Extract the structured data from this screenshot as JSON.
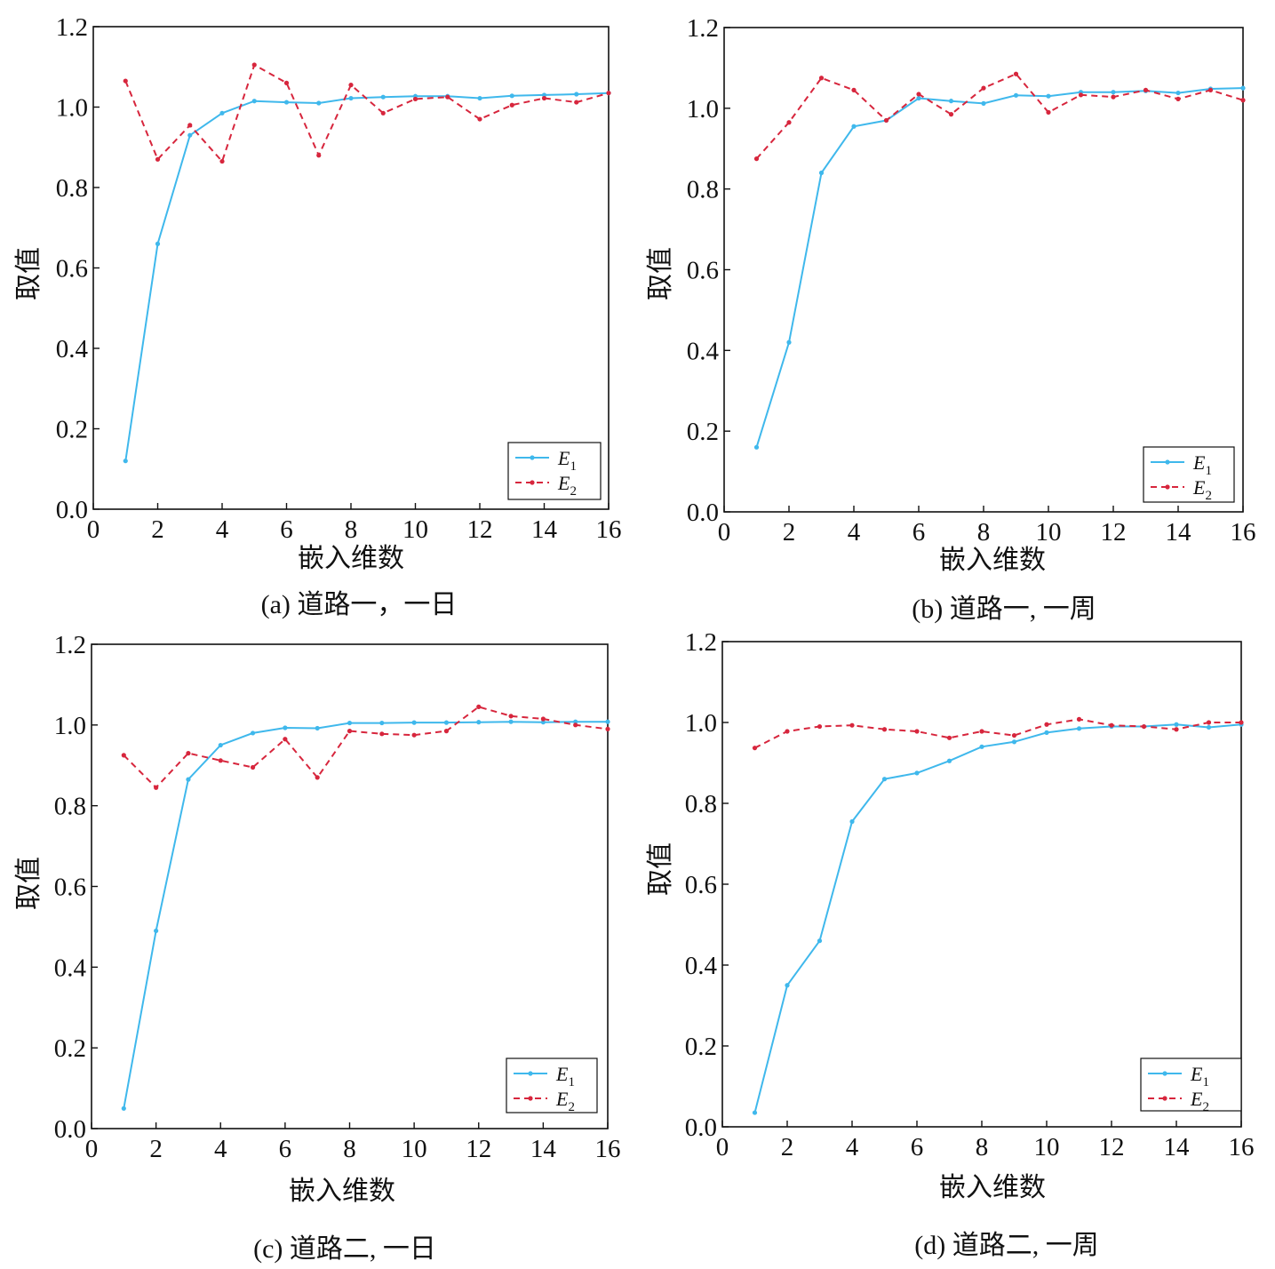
{
  "colors": {
    "e1": "#3fb8ec",
    "e2": "#d7263d",
    "axis": "#111111"
  },
  "chart_data": [
    {
      "type": "line",
      "caption": "(a) 道路一，一日",
      "xlabel": "嵌入维数",
      "ylabel": "取值",
      "xlim": [
        0,
        16
      ],
      "ylim": [
        0,
        1.2
      ],
      "xticks": [
        "0",
        "2",
        "4",
        "6",
        "8",
        "10",
        "12",
        "14",
        "16"
      ],
      "yticks": [
        "0.0",
        "0.2",
        "0.4",
        "0.6",
        "0.8",
        "1.0",
        "1.2"
      ],
      "legend": "bottom-right",
      "grid": false,
      "x": [
        1,
        2,
        3,
        4,
        5,
        6,
        7,
        8,
        9,
        10,
        11,
        12,
        13,
        14,
        15,
        16
      ],
      "series": [
        {
          "name": "E1",
          "style": "solid",
          "values": [
            0.12,
            0.66,
            0.93,
            0.985,
            1.015,
            1.012,
            1.01,
            1.022,
            1.025,
            1.027,
            1.027,
            1.022,
            1.028,
            1.03,
            1.032,
            1.035
          ]
        },
        {
          "name": "E2",
          "style": "dashed",
          "values": [
            1.065,
            0.87,
            0.955,
            0.865,
            1.105,
            1.06,
            0.88,
            1.055,
            0.985,
            1.02,
            1.025,
            0.97,
            1.005,
            1.022,
            1.012,
            1.035
          ]
        }
      ]
    },
    {
      "type": "line",
      "caption": "(b) 道路一, 一周",
      "xlabel": "嵌入维数",
      "ylabel": "取值",
      "xlim": [
        0,
        16
      ],
      "ylim": [
        0,
        1.2
      ],
      "xticks": [
        "0",
        "2",
        "4",
        "6",
        "8",
        "10",
        "12",
        "14",
        "16"
      ],
      "yticks": [
        "0.0",
        "0.2",
        "0.4",
        "0.6",
        "0.8",
        "1.0",
        "1.2"
      ],
      "legend": "bottom-right",
      "grid": false,
      "x": [
        1,
        2,
        3,
        4,
        5,
        6,
        7,
        8,
        9,
        10,
        11,
        12,
        13,
        14,
        15,
        16
      ],
      "series": [
        {
          "name": "E1",
          "style": "solid",
          "values": [
            0.16,
            0.42,
            0.84,
            0.955,
            0.97,
            1.025,
            1.018,
            1.012,
            1.032,
            1.03,
            1.04,
            1.04,
            1.043,
            1.038,
            1.048,
            1.05
          ]
        },
        {
          "name": "E2",
          "style": "dashed",
          "values": [
            0.875,
            0.965,
            1.075,
            1.045,
            0.97,
            1.035,
            0.985,
            1.05,
            1.085,
            0.99,
            1.033,
            1.028,
            1.045,
            1.023,
            1.045,
            1.02
          ]
        }
      ]
    },
    {
      "type": "line",
      "caption": "(c) 道路二, 一日",
      "xlabel": "嵌入维数",
      "ylabel": "取值",
      "xlim": [
        0,
        16
      ],
      "ylim": [
        0,
        1.2
      ],
      "xticks": [
        "0",
        "2",
        "4",
        "6",
        "8",
        "10",
        "12",
        "14",
        "16"
      ],
      "yticks": [
        "0.0",
        "0.2",
        "0.4",
        "0.6",
        "0.8",
        "1.0",
        "1.2"
      ],
      "legend": "bottom-right",
      "grid": false,
      "x": [
        1,
        2,
        3,
        4,
        5,
        6,
        7,
        8,
        9,
        10,
        11,
        12,
        13,
        14,
        15,
        16
      ],
      "series": [
        {
          "name": "E1",
          "style": "solid",
          "values": [
            0.05,
            0.49,
            0.865,
            0.95,
            0.98,
            0.993,
            0.992,
            1.005,
            1.005,
            1.006,
            1.006,
            1.007,
            1.008,
            1.007,
            1.008,
            1.008
          ]
        },
        {
          "name": "E2",
          "style": "dashed",
          "values": [
            0.925,
            0.845,
            0.93,
            0.912,
            0.895,
            0.965,
            0.87,
            0.985,
            0.978,
            0.975,
            0.985,
            1.045,
            1.022,
            1.015,
            1.0,
            0.99
          ]
        }
      ]
    },
    {
      "type": "line",
      "caption": "(d) 道路二, 一周",
      "xlabel": "嵌入维数",
      "ylabel": "取值",
      "xlim": [
        0,
        16
      ],
      "ylim": [
        0,
        1.2
      ],
      "xticks": [
        "0",
        "2",
        "4",
        "6",
        "8",
        "10",
        "12",
        "14",
        "16"
      ],
      "yticks": [
        "0.0",
        "0.2",
        "0.4",
        "0.6",
        "0.8",
        "1.0",
        "1.2"
      ],
      "legend": "bottom-right",
      "grid": false,
      "x": [
        1,
        2,
        3,
        4,
        5,
        6,
        7,
        8,
        9,
        10,
        11,
        12,
        13,
        14,
        15,
        16
      ],
      "series": [
        {
          "name": "E1",
          "style": "solid",
          "values": [
            0.035,
            0.35,
            0.46,
            0.755,
            0.86,
            0.875,
            0.905,
            0.94,
            0.952,
            0.975,
            0.985,
            0.99,
            0.99,
            0.995,
            0.988,
            0.995
          ]
        },
        {
          "name": "E2",
          "style": "dashed",
          "values": [
            0.937,
            0.978,
            0.99,
            0.993,
            0.983,
            0.978,
            0.962,
            0.978,
            0.968,
            0.995,
            1.008,
            0.993,
            0.99,
            0.983,
            1.0,
            1.0
          ]
        }
      ]
    }
  ]
}
